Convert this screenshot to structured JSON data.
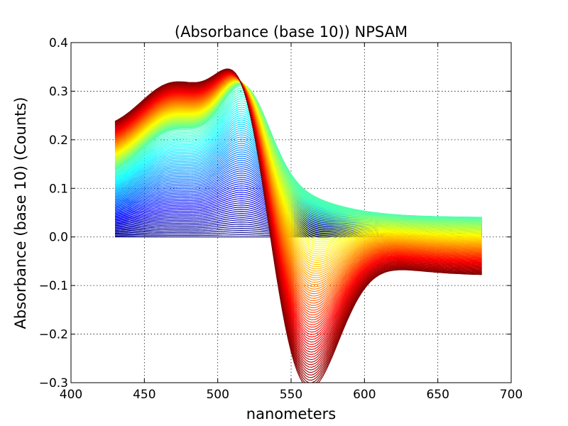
{
  "chart_data": {
    "type": "line",
    "title": "(Absorbance (base 10)) NPSAM",
    "xlabel": "nanometers",
    "ylabel": "Absorbance (base 10) (Counts)",
    "xlim": [
      400,
      700
    ],
    "ylim": [
      -0.3,
      0.4
    ],
    "xticks": [
      "400",
      "450",
      "500",
      "550",
      "600",
      "650",
      "700"
    ],
    "yticks": [
      "−0.3",
      "−0.2",
      "−0.1",
      "0.0",
      "0.1",
      "0.2",
      "0.3",
      "0.4"
    ],
    "x_range": [
      430,
      680
    ],
    "grid": true,
    "legend": "none",
    "colormap": "jet",
    "colormap_order": "first spectrum dark blue, last spectrum dark red",
    "series_count": 160,
    "key_points": {
      "x": [
        430,
        465,
        490,
        515,
        535,
        550,
        560,
        580,
        620,
        680
      ],
      "first_spectrum_y": [
        0.0,
        0.0,
        0.0,
        0.0,
        0.0,
        0.0,
        0.0,
        0.0,
        0.0,
        0.0
      ],
      "mid_spectrum_y": [
        0.1,
        0.11,
        0.13,
        0.3,
        0.22,
        0.15,
        0.12,
        0.09,
        0.07,
        0.04
      ],
      "last_spectrum_y": [
        0.225,
        0.265,
        0.26,
        0.3,
        0.04,
        -0.2,
        -0.27,
        -0.25,
        -0.16,
        -0.1
      ]
    }
  }
}
